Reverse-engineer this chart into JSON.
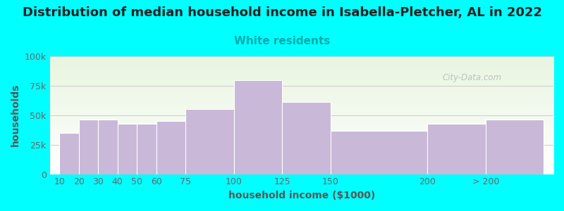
{
  "title": "Distribution of median household income in Isabella-Pletcher, AL in 2022",
  "subtitle": "White residents",
  "xlabel": "household income ($1000)",
  "ylabel": "households",
  "background_color": "#00FFFF",
  "plot_bg_top": "#e8f5e0",
  "plot_bg_bottom": "#ffffff",
  "bar_color": "#c9b8d8",
  "bar_edge_color": "#ffffff",
  "title_color": "#222222",
  "subtitle_color": "#00AAAA",
  "axis_label_color": "#555555",
  "tick_label_color": "#666666",
  "watermark": "City-Data.com",
  "values": [
    35000,
    46000,
    46000,
    43000,
    43000,
    45000,
    55000,
    80000,
    61000,
    37000,
    43000,
    46000
  ],
  "positions": [
    10,
    20,
    30,
    40,
    50,
    60,
    75,
    100,
    125,
    150,
    200,
    230
  ],
  "bar_widths_display": [
    10,
    10,
    10,
    10,
    10,
    15,
    25,
    25,
    25,
    50,
    50,
    30
  ],
  "xlim": [
    5,
    265
  ],
  "ylim": [
    0,
    100000
  ],
  "yticks": [
    0,
    25000,
    50000,
    75000,
    100000
  ],
  "ytick_labels": [
    "0",
    "25k",
    "50k",
    "75k",
    "100k"
  ],
  "xtick_positions": [
    10,
    20,
    30,
    40,
    50,
    60,
    75,
    100,
    125,
    150,
    200,
    230
  ],
  "xtick_labels": [
    "10",
    "20",
    "30",
    "40",
    "50",
    "60",
    "75",
    "100",
    "125",
    "150",
    "200",
    "> 200"
  ],
  "grid_color": "#cccccc",
  "title_fontsize": 13,
  "subtitle_fontsize": 11,
  "axis_label_fontsize": 10,
  "tick_fontsize": 9
}
